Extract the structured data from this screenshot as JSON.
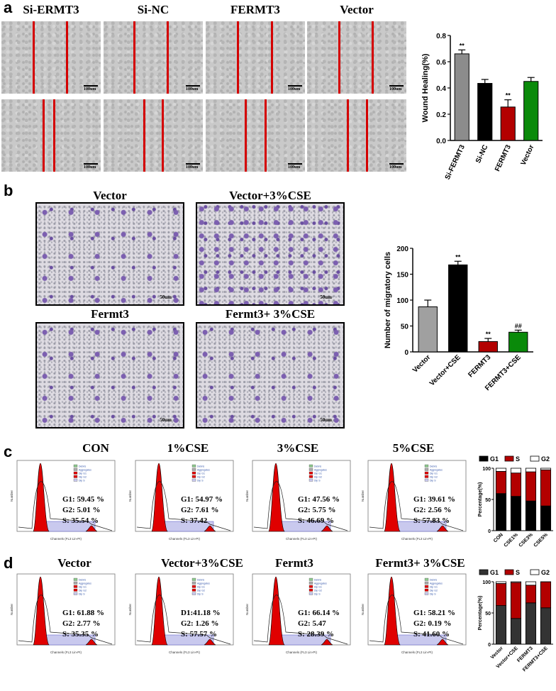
{
  "panels": {
    "a": {
      "label": "a",
      "titles": [
        "Si-ERMT3",
        "Si-NC",
        "FERMT3",
        "Vector"
      ],
      "scale": "100um"
    },
    "b": {
      "label": "b",
      "titles": [
        "Vector",
        "Vector+3%CSE",
        "Fermt3",
        "Fermt3+ 3%CSE"
      ],
      "scale": "50um"
    },
    "c": {
      "label": "c",
      "titles": [
        "CON",
        "1%CSE",
        "3%CSE",
        "5%CSE"
      ],
      "stats": [
        [
          "G1: 59.45 %",
          "G2: 5.01 %",
          "S: 35.54 %"
        ],
        [
          "G1: 54.97 %",
          "G2: 7.61 %",
          "S: 37.42"
        ],
        [
          "G1: 47.56 %",
          "G2: 5.75 %",
          "S: 46.69 %"
        ],
        [
          "G1: 39.61 %",
          "G2: 2.56 %",
          "S: 57.83 %"
        ]
      ]
    },
    "d": {
      "label": "d",
      "titles": [
        "Vector",
        "Vector+3%CSE",
        "Fermt3",
        "Fermt3+ 3%CSE"
      ],
      "stats": [
        [
          "G1: 61.88 %",
          "G2: 2.77 %",
          "S: 35.35 %"
        ],
        [
          "D1:41.18 %",
          "G2: 1.26 %",
          "S: 57.57 %"
        ],
        [
          "G1: 66.14 %",
          "G2: 5.47",
          "S: 28.39 %"
        ],
        [
          "G1: 58.21 %",
          "G2: 0.19 %",
          "S: 41.60 %"
        ]
      ]
    },
    "flow_legend": [
      "Debris",
      "Aggregates",
      "Dip G1",
      "Dip G2",
      "Dip S"
    ],
    "flow_axis": [
      "Number",
      "Channels (FL3 Lin-PI)"
    ]
  },
  "chart_data": [
    {
      "type": "bar",
      "ylabel": "Wound Healing(%)",
      "categories": [
        "Si-FERMT3",
        "Si-NC",
        "FERMT3",
        "Vector"
      ],
      "values": [
        0.66,
        0.435,
        0.255,
        0.45
      ],
      "errors": [
        0.03,
        0.03,
        0.055,
        0.03
      ],
      "colors": [
        "#8c8c8c",
        "#000000",
        "#b30000",
        "#0a8a0a"
      ],
      "annotations": [
        "**",
        "",
        "**",
        ""
      ],
      "ylim": [
        0,
        0.8
      ],
      "yticks": [
        "0.0",
        "0.2",
        "0.4",
        "0.6",
        "0.8"
      ]
    },
    {
      "type": "bar",
      "ylabel": "Number of migratory cells",
      "categories": [
        "Vector",
        "Vector+CSE",
        "FERMT3",
        "FERMT3+CSE"
      ],
      "values": [
        87,
        168,
        20,
        38
      ],
      "errors": [
        13,
        7,
        6,
        4
      ],
      "colors": [
        "#a0a0a0",
        "#000000",
        "#b30000",
        "#0a8a0a"
      ],
      "annotations": [
        "",
        "**",
        "**",
        "##"
      ],
      "ylim": [
        0,
        200
      ],
      "yticks": [
        "0",
        "50",
        "100",
        "150",
        "200"
      ]
    },
    {
      "type": "bar",
      "stacked": true,
      "ylabel": "Percentage(%)",
      "legend": [
        "G1",
        "S",
        "G2"
      ],
      "colors": [
        "#000000",
        "#b30000",
        "#ffffff"
      ],
      "categories": [
        "CON",
        "CSE1%",
        "CSE3%",
        "CSE5%"
      ],
      "series": [
        {
          "name": "G1",
          "values": [
            59.45,
            54.97,
            47.56,
            39.61
          ]
        },
        {
          "name": "S",
          "values": [
            35.54,
            37.42,
            46.69,
            57.83
          ]
        },
        {
          "name": "G2",
          "values": [
            5.01,
            7.61,
            5.75,
            2.56
          ]
        }
      ],
      "ylim": [
        0,
        100
      ],
      "yticks": [
        "0",
        "50",
        "100"
      ]
    },
    {
      "type": "bar",
      "stacked": true,
      "ylabel": "Percentage(%)",
      "legend": [
        "G1",
        "S",
        "G2"
      ],
      "colors": [
        "#333333",
        "#b30000",
        "#ffffff"
      ],
      "categories": [
        "Vector",
        "Vector+CSE",
        "FERMT3",
        "FERMT3+CSE"
      ],
      "series": [
        {
          "name": "G1",
          "values": [
            61.88,
            41.18,
            66.14,
            58.21
          ]
        },
        {
          "name": "S",
          "values": [
            35.35,
            57.57,
            28.39,
            41.6
          ]
        },
        {
          "name": "G2",
          "values": [
            2.77,
            1.26,
            5.47,
            0.19
          ]
        }
      ],
      "ylim": [
        0,
        100
      ],
      "yticks": [
        "0",
        "50",
        "100"
      ]
    }
  ]
}
